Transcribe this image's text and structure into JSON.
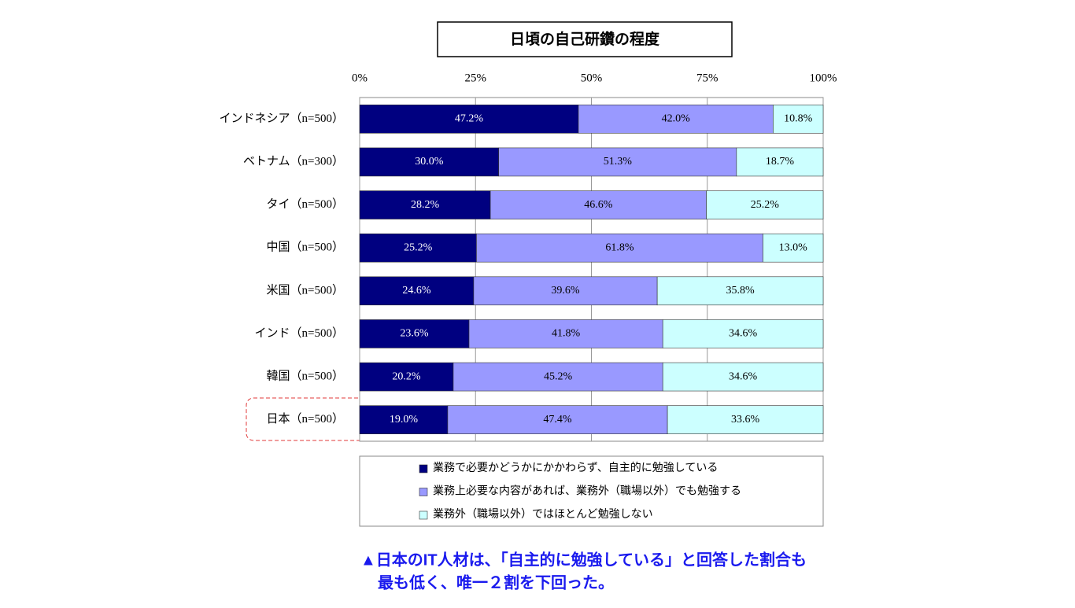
{
  "chart_data": {
    "type": "stacked-barh",
    "title": "日頃の自己研鑽の程度",
    "categories": [
      "インドネシア（n=500）",
      "ベトナム（n=300）",
      "タイ（n=500）",
      "中国（n=500）",
      "米国（n=500）",
      "インド（n=500）",
      "韓国（n=500）",
      "日本（n=500）"
    ],
    "series": [
      {
        "name": "業務で必要かどうかにかかわらず、自主的に勉強している",
        "color": "#000080",
        "label_color": "#ffffff",
        "values": [
          47.2,
          30.0,
          28.2,
          25.2,
          24.6,
          23.6,
          20.2,
          19.0
        ],
        "value_labels": [
          "47.2%",
          "30.0%",
          "28.2%",
          "25.2%",
          "24.6%",
          "23.6%",
          "20.2%",
          "19.0%"
        ]
      },
      {
        "name": "業務上必要な内容があれば、業務外（職場以外）でも勉強する",
        "color": "#9999ff",
        "label_color": "#000000",
        "values": [
          42.0,
          51.3,
          46.6,
          61.8,
          39.6,
          41.8,
          45.2,
          47.4
        ],
        "value_labels": [
          "42.0%",
          "51.3%",
          "46.6%",
          "61.8%",
          "39.6%",
          "41.8%",
          "45.2%",
          "47.4%"
        ]
      },
      {
        "name": "業務外（職場以外）ではほとんど勉強しない",
        "color": "#ccffff",
        "label_color": "#000000",
        "values": [
          10.8,
          18.7,
          25.2,
          13.0,
          35.8,
          34.6,
          34.6,
          33.6
        ],
        "value_labels": [
          "10.8%",
          "18.7%",
          "25.2%",
          "13.0%",
          "35.8%",
          "34.6%",
          "34.6%",
          "33.6%"
        ]
      }
    ],
    "xlim": [
      0,
      100
    ],
    "xticks": [
      {
        "value": 0,
        "label": "0%"
      },
      {
        "value": 25,
        "label": "25%"
      },
      {
        "value": 50,
        "label": "50%"
      },
      {
        "value": 75,
        "label": "75%"
      },
      {
        "value": 100,
        "label": "100%"
      }
    ],
    "grid": true,
    "caption": [
      "▲日本のIT人材は、「自主的に勉強している」と回答した割合も",
      "最も低く、唯一２割を下回った。"
    ]
  }
}
